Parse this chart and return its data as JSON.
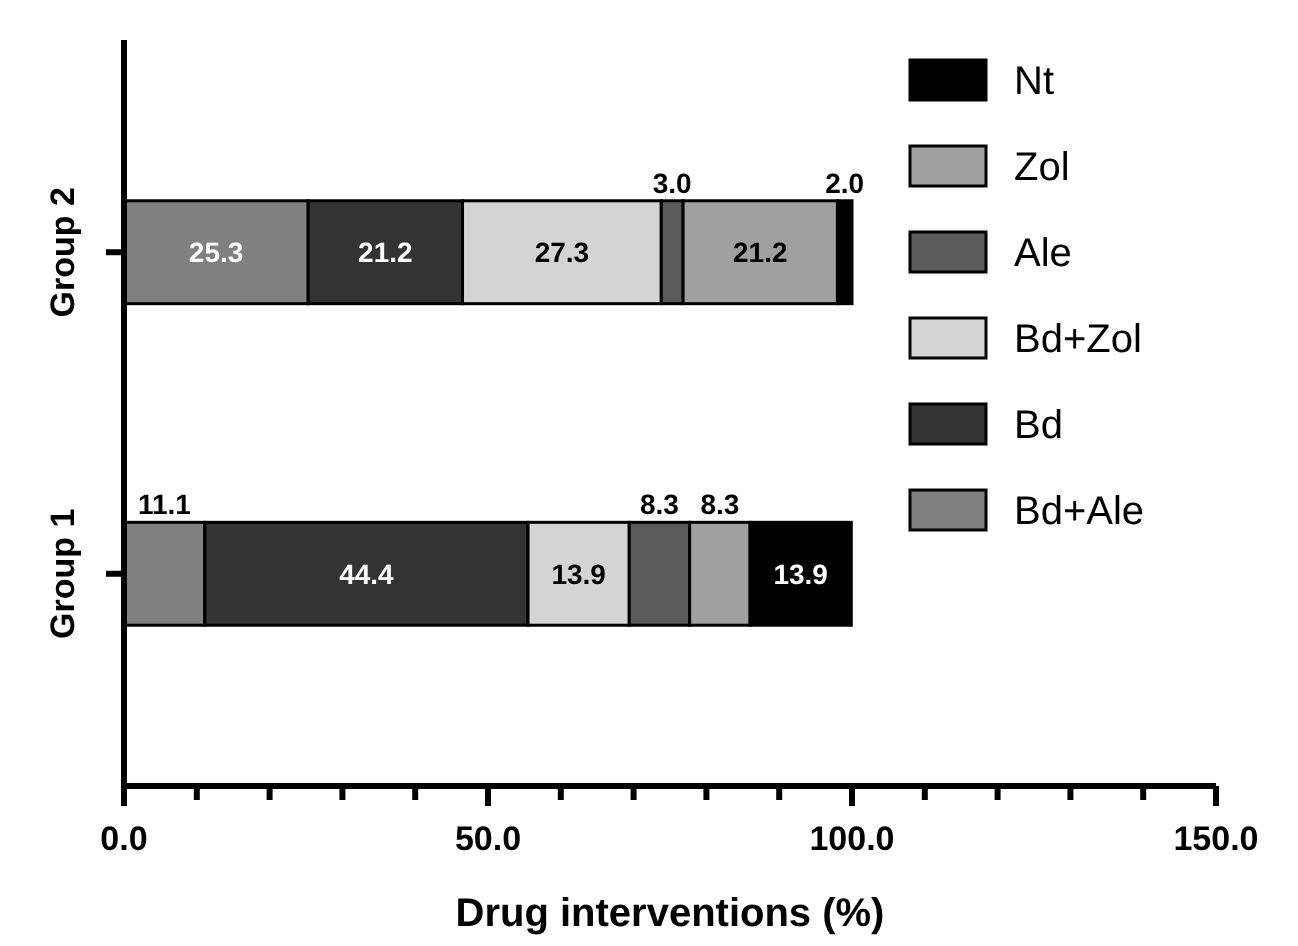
{
  "chart_data": {
    "type": "bar",
    "orientation": "horizontal",
    "stacked": true,
    "xlabel": "Drug interventions (%)",
    "categories": [
      "Group 2",
      "Group 1"
    ],
    "series": [
      {
        "name": "Bd+Ale",
        "color": "#808080",
        "values": [
          25.3,
          11.1
        ],
        "value_labels": [
          "25.3",
          "11.1"
        ]
      },
      {
        "name": "Bd",
        "color": "#333333",
        "values": [
          21.2,
          44.4
        ],
        "value_labels": [
          "21.2",
          "44.4"
        ]
      },
      {
        "name": "Bd+Zol",
        "color": "#d4d4d4",
        "values": [
          27.3,
          13.9
        ],
        "value_labels": [
          "27.3",
          "13.9"
        ]
      },
      {
        "name": "Ale",
        "color": "#5a5a5a",
        "values": [
          3.0,
          8.3
        ],
        "value_labels": [
          "3.0",
          "8.3"
        ]
      },
      {
        "name": "Zol",
        "color": "#a0a0a0",
        "values": [
          21.2,
          8.3
        ],
        "value_labels": [
          "21.2",
          "8.3"
        ]
      },
      {
        "name": "Nt",
        "color": "#000000",
        "values": [
          2.0,
          13.9
        ],
        "value_labels": [
          "2.0",
          "13.9"
        ]
      }
    ],
    "xlim": [
      0,
      150
    ],
    "xticks": [
      {
        "value": 0,
        "label": "0.0"
      },
      {
        "value": 10,
        "label": null
      },
      {
        "value": 20,
        "label": null
      },
      {
        "value": 30,
        "label": null
      },
      {
        "value": 40,
        "label": null
      },
      {
        "value": 50,
        "label": "50.0"
      },
      {
        "value": 60,
        "label": null
      },
      {
        "value": 70,
        "label": null
      },
      {
        "value": 80,
        "label": null
      },
      {
        "value": 90,
        "label": null
      },
      {
        "value": 100,
        "label": "100.0"
      },
      {
        "value": 110,
        "label": null
      },
      {
        "value": 120,
        "label": null
      },
      {
        "value": 130,
        "label": null
      },
      {
        "value": 140,
        "label": null
      },
      {
        "value": 150,
        "label": "150.0"
      }
    ],
    "legend": "right",
    "grid": false
  }
}
